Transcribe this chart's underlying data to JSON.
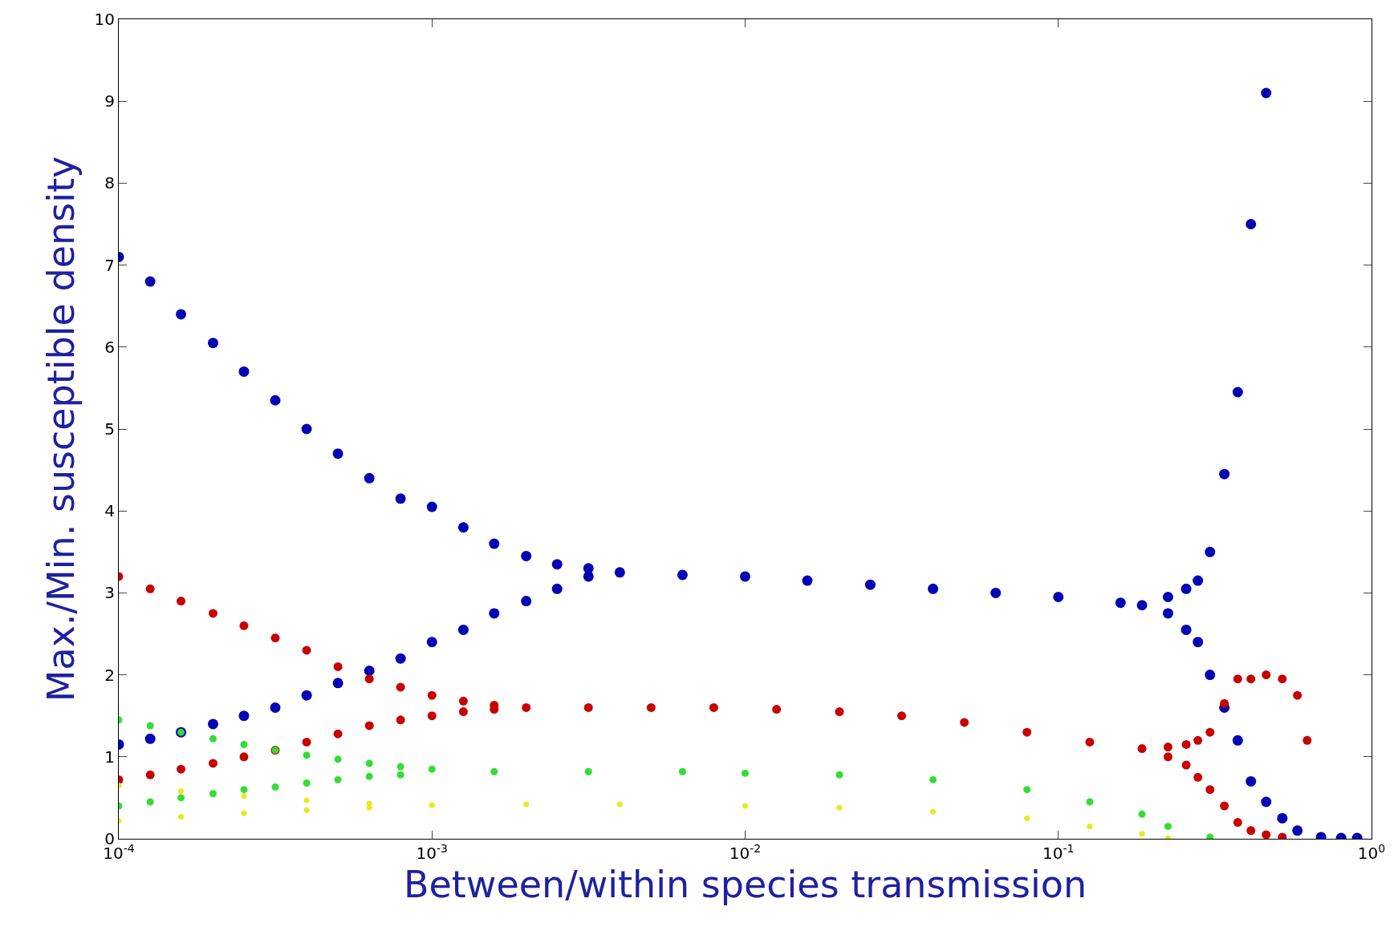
{
  "chart_data": {
    "type": "scatter",
    "xlabel": "Between/within species transmission",
    "ylabel": "Max./Min. susceptible density",
    "log": "x",
    "marker": "circle",
    "xlim": [
      0.0001,
      1
    ],
    "xticks": [
      {
        "value": 0.0001,
        "label": "10$^{-4}$"
      },
      {
        "value": 0.001,
        "label": "10$^{-3}$"
      },
      {
        "value": 0.01,
        "label": "10$^{-2}$"
      },
      {
        "value": 0.1,
        "label": "10$^{-1}$"
      },
      {
        "value": 1,
        "label": "10$^{0}$"
      }
    ],
    "ylim": [
      0,
      10
    ],
    "yticks": [
      0,
      1,
      2,
      3,
      4,
      5,
      6,
      7,
      8,
      9,
      10
    ],
    "series": [
      {
        "color": "#0000b4",
        "x": [
          0.0001,
          0.000126,
          0.000158,
          0.0002,
          0.000251,
          0.000316,
          0.000398,
          0.000501,
          0.000631,
          0.000794,
          0.001,
          0.00126,
          0.00158,
          0.002,
          0.00251,
          0.00316,
          0.0001,
          0.000126,
          0.000158,
          0.0002,
          0.000251,
          0.000316,
          0.000398,
          0.000501,
          0.000631,
          0.000794,
          0.001,
          0.00126,
          0.00158,
          0.002,
          0.00251,
          0.00316,
          0.00398,
          0.00631,
          0.01,
          0.0158,
          0.0251,
          0.0398,
          0.0631,
          0.1,
          0.158,
          0.185,
          0.224,
          0.256,
          0.279,
          0.305,
          0.339,
          0.374,
          0.412,
          0.461,
          0.224,
          0.256,
          0.279,
          0.305,
          0.339,
          0.374,
          0.412,
          0.461,
          0.519,
          0.58,
          0.69,
          0.8,
          0.9
        ],
        "values": [
          7.1,
          6.8,
          6.4,
          6.05,
          5.7,
          5.35,
          5.0,
          4.7,
          4.4,
          4.15,
          4.05,
          3.8,
          3.6,
          3.45,
          3.35,
          3.3,
          1.15,
          1.22,
          1.3,
          1.4,
          1.5,
          1.6,
          1.75,
          1.9,
          2.05,
          2.2,
          2.4,
          2.55,
          2.75,
          2.9,
          3.05,
          3.2,
          3.25,
          3.22,
          3.2,
          3.15,
          3.1,
          3.05,
          3.0,
          2.95,
          2.88,
          2.85,
          2.95,
          3.05,
          3.15,
          3.5,
          4.45,
          5.45,
          7.5,
          9.1,
          2.75,
          2.55,
          2.4,
          2.0,
          1.6,
          1.2,
          0.7,
          0.45,
          0.25,
          0.1,
          0.02,
          0.01,
          0.01
        ]
      },
      {
        "color": "#c80000",
        "x": [
          0.0001,
          0.000126,
          0.000158,
          0.0002,
          0.000251,
          0.000316,
          0.000398,
          0.000501,
          0.000631,
          0.000794,
          0.001,
          0.00126,
          0.00158,
          0.0001,
          0.000126,
          0.000158,
          0.0002,
          0.000251,
          0.000316,
          0.000398,
          0.000501,
          0.000631,
          0.000794,
          0.001,
          0.00126,
          0.00158,
          0.002,
          0.00316,
          0.00501,
          0.00794,
          0.0126,
          0.02,
          0.0316,
          0.0501,
          0.0794,
          0.126,
          0.185,
          0.224,
          0.256,
          0.279,
          0.305,
          0.339,
          0.374,
          0.412,
          0.461,
          0.519,
          0.58,
          0.623,
          0.224,
          0.256,
          0.279,
          0.305,
          0.339,
          0.374,
          0.412,
          0.461,
          0.519
        ],
        "values": [
          3.2,
          3.05,
          2.9,
          2.75,
          2.6,
          2.45,
          2.3,
          2.1,
          1.95,
          1.85,
          1.75,
          1.68,
          1.63,
          0.72,
          0.78,
          0.85,
          0.92,
          1.0,
          1.08,
          1.18,
          1.28,
          1.38,
          1.45,
          1.5,
          1.55,
          1.58,
          1.6,
          1.6,
          1.6,
          1.6,
          1.58,
          1.55,
          1.5,
          1.42,
          1.3,
          1.18,
          1.1,
          1.12,
          1.15,
          1.2,
          1.3,
          1.65,
          1.95,
          1.95,
          2.0,
          1.95,
          1.75,
          1.2,
          1.0,
          0.9,
          0.75,
          0.6,
          0.4,
          0.2,
          0.1,
          0.05,
          0.02
        ]
      },
      {
        "color": "#33dd33",
        "x": [
          0.0001,
          0.000126,
          0.000158,
          0.0002,
          0.000251,
          0.000316,
          0.000398,
          0.000501,
          0.000631,
          0.000794,
          0.001,
          0.0001,
          0.000126,
          0.000158,
          0.0002,
          0.000251,
          0.000316,
          0.000398,
          0.000501,
          0.000631,
          0.000794,
          0.00158,
          0.00316,
          0.00631,
          0.01,
          0.02,
          0.0398,
          0.0794,
          0.126,
          0.185,
          0.224,
          0.305
        ],
        "values": [
          1.45,
          1.38,
          1.3,
          1.22,
          1.15,
          1.08,
          1.02,
          0.97,
          0.92,
          0.88,
          0.85,
          0.4,
          0.45,
          0.5,
          0.55,
          0.6,
          0.63,
          0.68,
          0.72,
          0.76,
          0.78,
          0.82,
          0.82,
          0.82,
          0.8,
          0.78,
          0.72,
          0.6,
          0.45,
          0.3,
          0.15,
          0.02
        ]
      },
      {
        "color": "#e8e820",
        "x": [
          0.0001,
          0.000158,
          0.000251,
          0.000398,
          0.000631,
          0.001,
          0.0001,
          0.000158,
          0.000251,
          0.000398,
          0.000631,
          0.002,
          0.00398,
          0.01,
          0.02,
          0.0398,
          0.0794,
          0.126,
          0.185,
          0.224
        ],
        "values": [
          0.65,
          0.58,
          0.52,
          0.47,
          0.43,
          0.41,
          0.22,
          0.27,
          0.31,
          0.35,
          0.38,
          0.42,
          0.42,
          0.4,
          0.38,
          0.33,
          0.25,
          0.15,
          0.06,
          0.01
        ]
      }
    ]
  }
}
